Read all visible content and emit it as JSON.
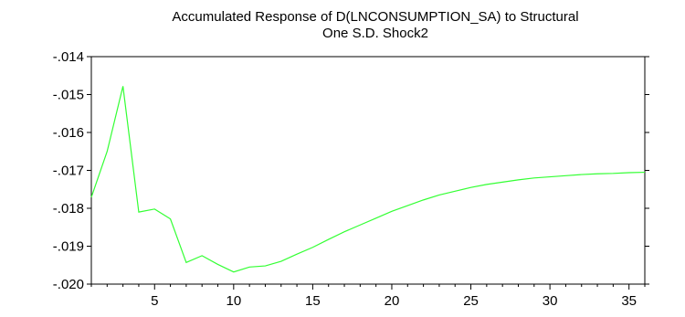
{
  "chart_data": {
    "type": "line",
    "title_lines": [
      "Accumulated Response of D(LNCONSUMPTION_SA) to Structural",
      "One S.D. Shock2"
    ],
    "xlabel": "",
    "ylabel": "",
    "xlim": [
      1,
      36
    ],
    "ylim": [
      -0.02,
      -0.014
    ],
    "x_ticks": [
      5,
      10,
      15,
      20,
      25,
      30,
      35
    ],
    "y_ticks": [
      -0.014,
      -0.015,
      -0.016,
      -0.017,
      -0.018,
      -0.019,
      -0.02
    ],
    "y_tick_labels": [
      "-.014",
      "-.015",
      "-.016",
      "-.017",
      "-.018",
      "-.019",
      "-.020"
    ],
    "grid": false,
    "line_color": "#33ff33",
    "series": [
      {
        "x": [
          1,
          2,
          3,
          4,
          5,
          6,
          7,
          8,
          9,
          10,
          11,
          12,
          13,
          14,
          15,
          16,
          17,
          18,
          19,
          20,
          21,
          22,
          23,
          24,
          25,
          26,
          27,
          28,
          29,
          30,
          31,
          32,
          33,
          34,
          35,
          36
        ],
        "values": [
          -0.01771,
          -0.0165,
          -0.01478,
          -0.0181,
          -0.01802,
          -0.01828,
          -0.01943,
          -0.01925,
          -0.01948,
          -0.01968,
          -0.01955,
          -0.01952,
          -0.0194,
          -0.01921,
          -0.01903,
          -0.01882,
          -0.01862,
          -0.01844,
          -0.01826,
          -0.01808,
          -0.01793,
          -0.01778,
          -0.01765,
          -0.01755,
          -0.01745,
          -0.01737,
          -0.01731,
          -0.01725,
          -0.0172,
          -0.01717,
          -0.01714,
          -0.01711,
          -0.01709,
          -0.01708,
          -0.01706,
          -0.01705
        ]
      }
    ]
  }
}
